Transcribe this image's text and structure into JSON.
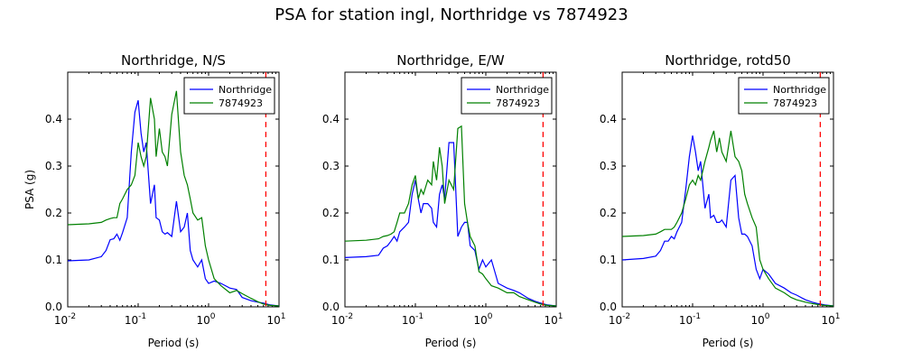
{
  "figure": {
    "title": "PSA for station ingl, Northridge vs 7874923"
  },
  "colors": {
    "series1": "#0000ff",
    "series2": "#008000",
    "marker": "#ff0000"
  },
  "chart_data": [
    {
      "type": "line",
      "title": "Northridge, N/S",
      "xlabel": "Period (s)",
      "ylabel": "PSA (g)",
      "xscale": "log",
      "xlim": [
        0.01,
        10
      ],
      "ylim": [
        0,
        0.5
      ],
      "xticks": [
        {
          "base": "10",
          "exp": "-2"
        },
        {
          "base": "10",
          "exp": "-1"
        },
        {
          "base": "10",
          "exp": "0"
        },
        {
          "base": "10",
          "exp": "1"
        }
      ],
      "yticks": [
        "0.0",
        "0.1",
        "0.2",
        "0.3",
        "0.4"
      ],
      "legend_position": "top-right",
      "marker_x": 6.5,
      "series": [
        {
          "name": "Northridge",
          "color": "#0000ff",
          "x": [
            0.01,
            0.02,
            0.03,
            0.035,
            0.04,
            0.045,
            0.05,
            0.055,
            0.06,
            0.07,
            0.08,
            0.09,
            0.1,
            0.11,
            0.12,
            0.13,
            0.15,
            0.17,
            0.18,
            0.2,
            0.22,
            0.24,
            0.26,
            0.3,
            0.35,
            0.4,
            0.45,
            0.5,
            0.55,
            0.6,
            0.7,
            0.8,
            0.9,
            1.0,
            1.2,
            1.5,
            2.0,
            2.5,
            3.0,
            4.0,
            5.0,
            6.0,
            7.5,
            10.0
          ],
          "y": [
            0.098,
            0.1,
            0.107,
            0.12,
            0.143,
            0.145,
            0.155,
            0.142,
            0.158,
            0.19,
            0.33,
            0.415,
            0.44,
            0.37,
            0.33,
            0.35,
            0.22,
            0.26,
            0.19,
            0.185,
            0.16,
            0.155,
            0.158,
            0.15,
            0.225,
            0.16,
            0.17,
            0.2,
            0.12,
            0.1,
            0.085,
            0.1,
            0.06,
            0.05,
            0.055,
            0.05,
            0.04,
            0.037,
            0.02,
            0.013,
            0.01,
            0.008,
            0.004,
            0.002
          ]
        },
        {
          "name": "7874923",
          "color": "#008000",
          "x": [
            0.01,
            0.02,
            0.03,
            0.035,
            0.04,
            0.045,
            0.05,
            0.055,
            0.06,
            0.07,
            0.08,
            0.09,
            0.1,
            0.11,
            0.12,
            0.13,
            0.15,
            0.17,
            0.18,
            0.2,
            0.22,
            0.24,
            0.26,
            0.3,
            0.35,
            0.4,
            0.45,
            0.5,
            0.55,
            0.6,
            0.7,
            0.8,
            0.9,
            1.0,
            1.2,
            1.5,
            2.0,
            2.5,
            3.0,
            4.0,
            5.0,
            6.0,
            7.5,
            10.0
          ],
          "y": [
            0.175,
            0.177,
            0.18,
            0.185,
            0.188,
            0.19,
            0.19,
            0.22,
            0.23,
            0.25,
            0.26,
            0.28,
            0.35,
            0.32,
            0.3,
            0.32,
            0.445,
            0.4,
            0.32,
            0.38,
            0.33,
            0.32,
            0.3,
            0.41,
            0.46,
            0.33,
            0.28,
            0.26,
            0.23,
            0.2,
            0.185,
            0.19,
            0.13,
            0.1,
            0.06,
            0.045,
            0.03,
            0.035,
            0.028,
            0.018,
            0.011,
            0.006,
            0.003,
            0.002
          ]
        }
      ]
    },
    {
      "type": "line",
      "title": "Northridge, E/W",
      "xlabel": "Period (s)",
      "ylabel": "",
      "xscale": "log",
      "xlim": [
        0.01,
        10
      ],
      "ylim": [
        0,
        0.5
      ],
      "xticks": [
        {
          "base": "10",
          "exp": "-2"
        },
        {
          "base": "10",
          "exp": "-1"
        },
        {
          "base": "10",
          "exp": "0"
        },
        {
          "base": "10",
          "exp": "1"
        }
      ],
      "yticks": [
        "0.0",
        "0.1",
        "0.2",
        "0.3",
        "0.4"
      ],
      "legend_position": "top-right",
      "marker_x": 6.5,
      "series": [
        {
          "name": "Northridge",
          "color": "#0000ff",
          "x": [
            0.01,
            0.02,
            0.03,
            0.035,
            0.04,
            0.045,
            0.05,
            0.055,
            0.06,
            0.07,
            0.08,
            0.09,
            0.1,
            0.11,
            0.12,
            0.13,
            0.15,
            0.17,
            0.18,
            0.2,
            0.22,
            0.24,
            0.26,
            0.3,
            0.35,
            0.4,
            0.45,
            0.5,
            0.55,
            0.6,
            0.7,
            0.8,
            0.9,
            1.0,
            1.2,
            1.5,
            2.0,
            2.5,
            3.0,
            4.0,
            5.0,
            6.0,
            7.5,
            10.0
          ],
          "y": [
            0.105,
            0.107,
            0.11,
            0.125,
            0.13,
            0.14,
            0.15,
            0.14,
            0.16,
            0.17,
            0.18,
            0.24,
            0.27,
            0.23,
            0.2,
            0.22,
            0.22,
            0.21,
            0.18,
            0.17,
            0.24,
            0.26,
            0.23,
            0.35,
            0.35,
            0.15,
            0.17,
            0.18,
            0.18,
            0.13,
            0.12,
            0.08,
            0.1,
            0.085,
            0.1,
            0.05,
            0.04,
            0.035,
            0.03,
            0.018,
            0.012,
            0.008,
            0.004,
            0.002
          ]
        },
        {
          "name": "7874923",
          "color": "#008000",
          "x": [
            0.01,
            0.02,
            0.03,
            0.035,
            0.04,
            0.045,
            0.05,
            0.055,
            0.06,
            0.07,
            0.08,
            0.09,
            0.1,
            0.11,
            0.12,
            0.13,
            0.15,
            0.17,
            0.18,
            0.2,
            0.22,
            0.24,
            0.26,
            0.3,
            0.35,
            0.4,
            0.45,
            0.5,
            0.55,
            0.6,
            0.7,
            0.8,
            0.9,
            1.0,
            1.2,
            1.5,
            2.0,
            2.5,
            3.0,
            4.0,
            5.0,
            6.0,
            7.5,
            10.0
          ],
          "y": [
            0.14,
            0.142,
            0.145,
            0.15,
            0.152,
            0.155,
            0.16,
            0.18,
            0.2,
            0.2,
            0.22,
            0.26,
            0.28,
            0.23,
            0.25,
            0.24,
            0.27,
            0.26,
            0.31,
            0.27,
            0.34,
            0.3,
            0.22,
            0.27,
            0.25,
            0.38,
            0.385,
            0.22,
            0.18,
            0.15,
            0.13,
            0.075,
            0.07,
            0.06,
            0.045,
            0.04,
            0.03,
            0.03,
            0.022,
            0.015,
            0.01,
            0.006,
            0.003,
            0.002
          ]
        }
      ]
    },
    {
      "type": "line",
      "title": "Northridge, rotd50",
      "xlabel": "Period (s)",
      "ylabel": "",
      "xscale": "log",
      "xlim": [
        0.01,
        10
      ],
      "ylim": [
        0,
        0.5
      ],
      "xticks": [
        {
          "base": "10",
          "exp": "-2"
        },
        {
          "base": "10",
          "exp": "-1"
        },
        {
          "base": "10",
          "exp": "0"
        },
        {
          "base": "10",
          "exp": "1"
        }
      ],
      "yticks": [
        "0.0",
        "0.1",
        "0.2",
        "0.3",
        "0.4"
      ],
      "legend_position": "top-right",
      "marker_x": 6.5,
      "series": [
        {
          "name": "Northridge",
          "color": "#0000ff",
          "x": [
            0.01,
            0.02,
            0.03,
            0.035,
            0.04,
            0.045,
            0.05,
            0.055,
            0.06,
            0.07,
            0.08,
            0.09,
            0.1,
            0.11,
            0.12,
            0.13,
            0.15,
            0.17,
            0.18,
            0.2,
            0.22,
            0.24,
            0.26,
            0.3,
            0.35,
            0.4,
            0.45,
            0.5,
            0.55,
            0.6,
            0.7,
            0.8,
            0.9,
            1.0,
            1.2,
            1.5,
            2.0,
            2.5,
            3.0,
            4.0,
            5.0,
            6.0,
            7.5,
            10.0
          ],
          "y": [
            0.1,
            0.103,
            0.108,
            0.12,
            0.14,
            0.14,
            0.15,
            0.145,
            0.16,
            0.18,
            0.25,
            0.32,
            0.365,
            0.33,
            0.29,
            0.31,
            0.21,
            0.24,
            0.19,
            0.195,
            0.18,
            0.18,
            0.185,
            0.17,
            0.27,
            0.28,
            0.19,
            0.155,
            0.155,
            0.15,
            0.13,
            0.08,
            0.06,
            0.08,
            0.07,
            0.05,
            0.04,
            0.03,
            0.025,
            0.015,
            0.01,
            0.007,
            0.004,
            0.002
          ]
        },
        {
          "name": "7874923",
          "color": "#008000",
          "x": [
            0.01,
            0.02,
            0.03,
            0.035,
            0.04,
            0.045,
            0.05,
            0.055,
            0.06,
            0.07,
            0.08,
            0.09,
            0.1,
            0.11,
            0.12,
            0.13,
            0.15,
            0.17,
            0.18,
            0.2,
            0.22,
            0.24,
            0.26,
            0.3,
            0.35,
            0.4,
            0.45,
            0.5,
            0.55,
            0.6,
            0.7,
            0.8,
            0.9,
            1.0,
            1.2,
            1.5,
            2.0,
            2.5,
            3.0,
            4.0,
            5.0,
            6.0,
            7.5,
            10.0
          ],
          "y": [
            0.15,
            0.152,
            0.155,
            0.16,
            0.165,
            0.165,
            0.165,
            0.17,
            0.18,
            0.2,
            0.23,
            0.26,
            0.27,
            0.26,
            0.28,
            0.27,
            0.31,
            0.34,
            0.355,
            0.375,
            0.33,
            0.36,
            0.33,
            0.31,
            0.375,
            0.32,
            0.31,
            0.29,
            0.24,
            0.22,
            0.19,
            0.17,
            0.1,
            0.08,
            0.06,
            0.04,
            0.03,
            0.02,
            0.015,
            0.01,
            0.007,
            0.005,
            0.003,
            0.002
          ]
        }
      ]
    }
  ]
}
